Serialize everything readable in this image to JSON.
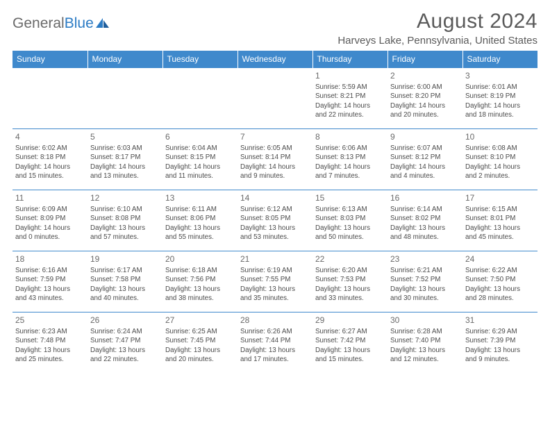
{
  "logo": {
    "text1": "General",
    "text2": "Blue"
  },
  "header": {
    "month": "August 2024",
    "location": "Harveys Lake, Pennsylvania, United States"
  },
  "colors": {
    "header_bg": "#3f89cc",
    "header_fg": "#ffffff",
    "border": "#3f89cc",
    "text": "#4a4a4a"
  },
  "daynames": [
    "Sunday",
    "Monday",
    "Tuesday",
    "Wednesday",
    "Thursday",
    "Friday",
    "Saturday"
  ],
  "weeks": [
    [
      null,
      null,
      null,
      null,
      {
        "n": "1",
        "sr": "5:59 AM",
        "ss": "8:21 PM",
        "dl1": "14 hours",
        "dl2": "and 22 minutes."
      },
      {
        "n": "2",
        "sr": "6:00 AM",
        "ss": "8:20 PM",
        "dl1": "14 hours",
        "dl2": "and 20 minutes."
      },
      {
        "n": "3",
        "sr": "6:01 AM",
        "ss": "8:19 PM",
        "dl1": "14 hours",
        "dl2": "and 18 minutes."
      }
    ],
    [
      {
        "n": "4",
        "sr": "6:02 AM",
        "ss": "8:18 PM",
        "dl1": "14 hours",
        "dl2": "and 15 minutes."
      },
      {
        "n": "5",
        "sr": "6:03 AM",
        "ss": "8:17 PM",
        "dl1": "14 hours",
        "dl2": "and 13 minutes."
      },
      {
        "n": "6",
        "sr": "6:04 AM",
        "ss": "8:15 PM",
        "dl1": "14 hours",
        "dl2": "and 11 minutes."
      },
      {
        "n": "7",
        "sr": "6:05 AM",
        "ss": "8:14 PM",
        "dl1": "14 hours",
        "dl2": "and 9 minutes."
      },
      {
        "n": "8",
        "sr": "6:06 AM",
        "ss": "8:13 PM",
        "dl1": "14 hours",
        "dl2": "and 7 minutes."
      },
      {
        "n": "9",
        "sr": "6:07 AM",
        "ss": "8:12 PM",
        "dl1": "14 hours",
        "dl2": "and 4 minutes."
      },
      {
        "n": "10",
        "sr": "6:08 AM",
        "ss": "8:10 PM",
        "dl1": "14 hours",
        "dl2": "and 2 minutes."
      }
    ],
    [
      {
        "n": "11",
        "sr": "6:09 AM",
        "ss": "8:09 PM",
        "dl1": "14 hours",
        "dl2": "and 0 minutes."
      },
      {
        "n": "12",
        "sr": "6:10 AM",
        "ss": "8:08 PM",
        "dl1": "13 hours",
        "dl2": "and 57 minutes."
      },
      {
        "n": "13",
        "sr": "6:11 AM",
        "ss": "8:06 PM",
        "dl1": "13 hours",
        "dl2": "and 55 minutes."
      },
      {
        "n": "14",
        "sr": "6:12 AM",
        "ss": "8:05 PM",
        "dl1": "13 hours",
        "dl2": "and 53 minutes."
      },
      {
        "n": "15",
        "sr": "6:13 AM",
        "ss": "8:03 PM",
        "dl1": "13 hours",
        "dl2": "and 50 minutes."
      },
      {
        "n": "16",
        "sr": "6:14 AM",
        "ss": "8:02 PM",
        "dl1": "13 hours",
        "dl2": "and 48 minutes."
      },
      {
        "n": "17",
        "sr": "6:15 AM",
        "ss": "8:01 PM",
        "dl1": "13 hours",
        "dl2": "and 45 minutes."
      }
    ],
    [
      {
        "n": "18",
        "sr": "6:16 AM",
        "ss": "7:59 PM",
        "dl1": "13 hours",
        "dl2": "and 43 minutes."
      },
      {
        "n": "19",
        "sr": "6:17 AM",
        "ss": "7:58 PM",
        "dl1": "13 hours",
        "dl2": "and 40 minutes."
      },
      {
        "n": "20",
        "sr": "6:18 AM",
        "ss": "7:56 PM",
        "dl1": "13 hours",
        "dl2": "and 38 minutes."
      },
      {
        "n": "21",
        "sr": "6:19 AM",
        "ss": "7:55 PM",
        "dl1": "13 hours",
        "dl2": "and 35 minutes."
      },
      {
        "n": "22",
        "sr": "6:20 AM",
        "ss": "7:53 PM",
        "dl1": "13 hours",
        "dl2": "and 33 minutes."
      },
      {
        "n": "23",
        "sr": "6:21 AM",
        "ss": "7:52 PM",
        "dl1": "13 hours",
        "dl2": "and 30 minutes."
      },
      {
        "n": "24",
        "sr": "6:22 AM",
        "ss": "7:50 PM",
        "dl1": "13 hours",
        "dl2": "and 28 minutes."
      }
    ],
    [
      {
        "n": "25",
        "sr": "6:23 AM",
        "ss": "7:48 PM",
        "dl1": "13 hours",
        "dl2": "and 25 minutes."
      },
      {
        "n": "26",
        "sr": "6:24 AM",
        "ss": "7:47 PM",
        "dl1": "13 hours",
        "dl2": "and 22 minutes."
      },
      {
        "n": "27",
        "sr": "6:25 AM",
        "ss": "7:45 PM",
        "dl1": "13 hours",
        "dl2": "and 20 minutes."
      },
      {
        "n": "28",
        "sr": "6:26 AM",
        "ss": "7:44 PM",
        "dl1": "13 hours",
        "dl2": "and 17 minutes."
      },
      {
        "n": "29",
        "sr": "6:27 AM",
        "ss": "7:42 PM",
        "dl1": "13 hours",
        "dl2": "and 15 minutes."
      },
      {
        "n": "30",
        "sr": "6:28 AM",
        "ss": "7:40 PM",
        "dl1": "13 hours",
        "dl2": "and 12 minutes."
      },
      {
        "n": "31",
        "sr": "6:29 AM",
        "ss": "7:39 PM",
        "dl1": "13 hours",
        "dl2": "and 9 minutes."
      }
    ]
  ],
  "labels": {
    "sunrise": "Sunrise:",
    "sunset": "Sunset:",
    "daylight": "Daylight:"
  }
}
